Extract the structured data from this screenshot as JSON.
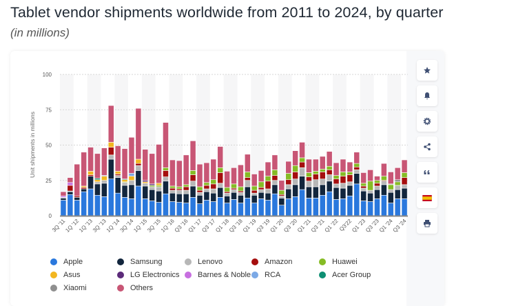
{
  "title": "Tablet vendor shipments worldwide from 2011 to 2024, by quarter",
  "subtitle": "(in millions)",
  "sidebar": {
    "buttons": [
      {
        "icon": "star-icon",
        "name": "favorite-button"
      },
      {
        "icon": "bell-icon",
        "name": "notification-button"
      },
      {
        "icon": "gear-icon",
        "name": "settings-button"
      },
      {
        "icon": "share-icon",
        "name": "share-button"
      },
      {
        "icon": "quote-icon",
        "name": "cite-button"
      },
      {
        "icon": "spain-flag-icon",
        "name": "language-button"
      },
      {
        "icon": "print-icon",
        "name": "print-button"
      }
    ]
  },
  "chart_data": {
    "type": "bar",
    "stacked": true,
    "title": "",
    "xlabel": "",
    "ylabel": "Unit shipments in millions",
    "ylim": [
      0,
      100
    ],
    "yticks": [
      0,
      25,
      50,
      75,
      100
    ],
    "grid": true,
    "legend_position": "bottom",
    "categories": [
      "3Q '11",
      "",
      "1Q '12",
      "",
      "1Q '13",
      "",
      "3Q '13",
      "",
      "1Q '14",
      "",
      "3Q '14",
      "",
      "1Q '15",
      "",
      "3Q '15",
      "",
      "1Q '16",
      "",
      "Q3 '16",
      "",
      "Q1 '17",
      "",
      "Q3 '17",
      "",
      "Q1 '18",
      "",
      "Q3 '18",
      "",
      "Q1 '19",
      "",
      "Q3 '19",
      "",
      "Q1 '20",
      "",
      "Q3 '20",
      "",
      "Q1 '21",
      "",
      "Q3 '21",
      "",
      "Q1 '22",
      "",
      "Q3'22",
      "",
      "Q1 '23",
      "",
      "Q3 '23",
      "",
      "Q1 '24",
      "",
      "Q3 '24"
    ],
    "series": [
      {
        "name": "Apple",
        "color": "#2a78dd",
        "values": [
          11,
          15,
          11,
          17,
          19,
          14.5,
          13.5,
          26,
          16,
          13,
          12,
          21,
          12,
          10.5,
          9.5,
          15.5,
          10,
          9.5,
          9,
          13,
          8.5,
          11,
          10,
          13,
          9,
          11.5,
          9,
          12.5,
          9,
          12,
          11,
          15.5,
          7.5,
          12,
          13.5,
          18.5,
          12.5,
          12.5,
          14.5,
          17,
          11.5,
          12,
          14,
          22.5,
          10.5,
          10,
          12,
          14.5,
          9,
          12,
          12
        ]
      },
      {
        "name": "Samsung",
        "color": "#12263d",
        "values": [
          1.5,
          2,
          2,
          2,
          9,
          8,
          9.5,
          14,
          11,
          8.5,
          10,
          11,
          9,
          8,
          8,
          9,
          6,
          6,
          6.5,
          8,
          6,
          6,
          6,
          7,
          5,
          5,
          5.5,
          8,
          5.5,
          4.5,
          5,
          6.5,
          5,
          7,
          8.5,
          9.5,
          8,
          8,
          7.5,
          7.5,
          8.5,
          7.5,
          7.5,
          7.5,
          7,
          6,
          6.5,
          7.5,
          7.5,
          6.5,
          7.5
        ]
      },
      {
        "name": "Lenovo",
        "color": "#b7b7b7",
        "values": [
          0.5,
          0.5,
          0,
          0,
          0,
          1.5,
          2,
          3,
          1.5,
          2,
          3,
          3.5,
          2,
          2,
          3,
          3,
          2,
          2.5,
          2.5,
          3.5,
          2,
          2,
          3,
          3,
          2,
          2,
          2,
          4.5,
          1.5,
          2,
          3,
          3,
          1.5,
          3,
          4,
          6,
          4,
          5,
          4,
          4.5,
          2.5,
          3.5,
          2.5,
          2.5,
          2,
          2,
          2.5,
          2.5,
          2,
          3,
          2.5
        ]
      },
      {
        "name": "Amazon",
        "color": "#a50e0e",
        "values": [
          0,
          4,
          1,
          1,
          1,
          0,
          0,
          5.5,
          1,
          0,
          0,
          1.5,
          0,
          0,
          0,
          4.5,
          1.5,
          1,
          2.5,
          4.5,
          1.5,
          2.5,
          3.5,
          7.5,
          1,
          1,
          1,
          2,
          2,
          1.5,
          5.5,
          3.5,
          1,
          3.5,
          5,
          4,
          3,
          4,
          5,
          3.5,
          3.5,
          5,
          5,
          2,
          1.5,
          0,
          2,
          0.5,
          0,
          0,
          5
        ]
      },
      {
        "name": "Huawei",
        "color": "#86bc25",
        "values": [
          0,
          0,
          0,
          0,
          0,
          0,
          0,
          0,
          0,
          0.5,
          0,
          0,
          0,
          1,
          1,
          2,
          1.5,
          1.5,
          1.5,
          3,
          2.5,
          2,
          3,
          3.5,
          3,
          3,
          3,
          4,
          3,
          4,
          3.5,
          4,
          3,
          4.5,
          4.5,
          3,
          3,
          2,
          2,
          2.5,
          2.5,
          3,
          2,
          2.5,
          2,
          6.5,
          2,
          3,
          3.5,
          2.5,
          3.5
        ]
      },
      {
        "name": "Asus",
        "color": "#f2b620",
        "values": [
          0,
          0,
          0,
          1,
          2.5,
          1.5,
          3,
          3.5,
          2,
          1.5,
          3,
          3,
          1,
          0,
          1.5,
          0,
          0,
          0,
          0,
          0,
          0,
          0,
          0,
          0,
          0,
          0,
          0,
          0,
          0,
          0,
          0,
          0,
          0,
          0,
          0,
          0,
          0,
          0,
          0,
          0,
          0,
          0,
          0,
          0,
          0,
          0,
          0,
          0,
          0,
          0,
          0
        ]
      },
      {
        "name": "LG Electronics",
        "color": "#5c2b7a",
        "values": [
          0,
          0,
          0,
          0,
          0,
          0,
          0,
          0,
          0,
          0,
          0,
          0,
          1,
          1,
          0,
          0,
          0,
          0,
          0,
          0,
          0,
          0,
          0,
          0,
          0,
          0,
          0,
          0,
          0,
          0,
          0,
          0,
          0,
          0,
          0,
          0,
          0,
          0,
          0,
          0,
          0,
          0,
          0,
          0,
          0,
          0,
          0,
          0,
          0,
          0,
          0
        ]
      },
      {
        "name": "Barnes & Noble",
        "color": "#c76fe0",
        "values": [
          1,
          2,
          0,
          0,
          0,
          0,
          0,
          0,
          0,
          0,
          0,
          0,
          0,
          0,
          0,
          0,
          0,
          0,
          0,
          0,
          0,
          0,
          0,
          0,
          0,
          0,
          0,
          0,
          0,
          0,
          0,
          0,
          0,
          0,
          0,
          0,
          0,
          0,
          0,
          0,
          0,
          0,
          0,
          0,
          0,
          0,
          0,
          0,
          0,
          0,
          0
        ]
      },
      {
        "name": "RCA",
        "color": "#7ca9e6",
        "values": [
          0,
          0,
          0,
          0,
          0,
          0,
          0.5,
          0,
          0,
          0,
          2,
          0,
          0,
          0,
          0,
          0,
          0,
          0,
          0,
          0,
          0,
          0,
          0,
          0,
          0,
          0,
          0,
          0,
          0,
          0,
          0,
          0,
          0,
          0,
          0,
          0,
          0,
          0,
          0,
          0,
          0,
          0,
          0,
          0,
          0,
          0,
          0,
          0,
          0,
          0,
          0
        ]
      },
      {
        "name": "Acer Group",
        "color": "#0d8f73",
        "values": [
          0,
          0,
          0,
          0,
          0,
          1,
          0,
          0,
          0,
          0.5,
          0,
          0,
          0,
          0,
          0,
          0,
          0,
          0,
          0,
          0,
          0,
          0,
          0,
          0,
          0,
          0,
          0,
          0,
          0,
          0,
          0,
          0,
          0,
          0,
          0,
          0,
          0,
          0,
          0,
          0,
          0,
          0,
          0,
          0,
          0,
          0,
          0,
          0,
          0,
          0,
          0
        ]
      },
      {
        "name": "Xiaomi",
        "color": "#8f8f8f",
        "values": [
          0,
          0,
          0,
          0,
          0,
          0,
          0,
          0,
          0,
          0,
          0,
          0,
          0,
          0,
          0,
          0,
          0,
          0,
          0,
          0,
          0,
          0,
          0,
          0,
          0,
          0,
          0,
          0,
          0,
          0,
          0,
          0,
          0,
          0,
          0,
          0,
          0,
          0,
          0,
          0,
          0,
          0,
          0,
          0,
          0,
          0,
          0,
          0,
          0.5,
          1.5,
          0
        ]
      },
      {
        "name": "Others",
        "color": "#c85675",
        "values": [
          3,
          3.5,
          22.5,
          24,
          17,
          17.5,
          19.5,
          26,
          18,
          21.5,
          25.5,
          36,
          22,
          21.5,
          27.5,
          32,
          18.5,
          18.5,
          21,
          21,
          16,
          14,
          14.5,
          15,
          11.5,
          11.5,
          15.5,
          12.5,
          8.5,
          8,
          10,
          10.5,
          7,
          8.5,
          10.5,
          11,
          9.5,
          8.5,
          9,
          10.5,
          9,
          9,
          7,
          8,
          7.5,
          8,
          3,
          9,
          8.5,
          8.5,
          9
        ]
      }
    ]
  }
}
